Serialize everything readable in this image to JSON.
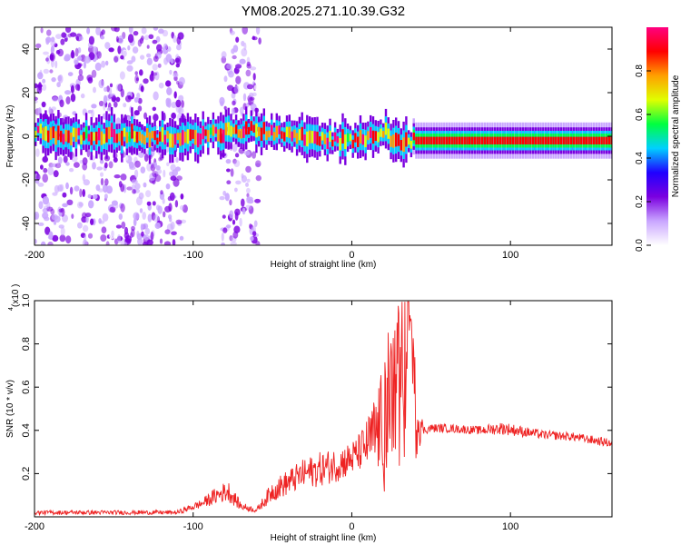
{
  "title": "YM08.2025.271.10.39.G32",
  "chart_data": [
    {
      "type": "heatmap",
      "name": "spectrogram",
      "xlabel": "Height of straight line (km)",
      "ylabel": "Frequency (Hz)",
      "xlim": [
        -200,
        164
      ],
      "ylim": [
        -50,
        50
      ],
      "xticks": [
        -200,
        -100,
        0,
        100
      ],
      "yticks": [
        -40,
        -20,
        0,
        20,
        40
      ],
      "noise_regions_km": [
        [
          -200,
          -105
        ],
        [
          -82,
          -58
        ]
      ],
      "signal_line": {
        "x": [
          -200,
          -175,
          -150,
          -130,
          -110,
          -95,
          -80,
          -65,
          -50,
          -40,
          -30,
          -20,
          -10,
          0,
          10,
          20,
          28,
          35,
          50,
          80,
          120,
          164
        ],
        "y": [
          2,
          0,
          1,
          0,
          -1,
          0,
          2,
          3,
          2,
          1,
          0,
          -1,
          -2,
          -2,
          0,
          2,
          -3,
          -2,
          -2,
          -2,
          -2,
          -2
        ]
      },
      "colorbar": {
        "label": "Normalized spectral amplitude",
        "range": [
          0,
          1
        ],
        "ticks": [
          "0.0",
          "0.2",
          "0.4",
          "0.6",
          "0.8"
        ],
        "colors": [
          "#ffffff",
          "#c9a6ff",
          "#7b00e0",
          "#2000ff",
          "#00d0ff",
          "#00ff40",
          "#e0ff00",
          "#ffa000",
          "#ff0000",
          "#ff0080"
        ]
      }
    },
    {
      "type": "line",
      "name": "snr",
      "xlabel": "Height of straight line (km)",
      "ylabel": "SNR (10 * v/v)",
      "scale_label": "(x10",
      "scale_exponent": "4",
      "xlim": [
        -200,
        164
      ],
      "ylim": [
        0,
        1.0
      ],
      "xticks": [
        -200,
        -100,
        0,
        100
      ],
      "yticks": [
        0.2,
        0.4,
        0.6,
        0.8,
        1.0
      ],
      "ytick_labels": [
        "0.2",
        "0.4",
        "0.6",
        "0.8",
        "1.0"
      ],
      "series": [
        {
          "name": "SNR",
          "color": "#ee2222",
          "x": [
            -200,
            -150,
            -110,
            -95,
            -85,
            -78,
            -70,
            -60,
            -50,
            -40,
            -30,
            -20,
            -10,
            0,
            5,
            10,
            15,
            20,
            25,
            30,
            35,
            37,
            40,
            45,
            50,
            60,
            80,
            95,
            120,
            140,
            164
          ],
          "y": [
            0.02,
            0.02,
            0.02,
            0.06,
            0.1,
            0.12,
            0.05,
            0.03,
            0.12,
            0.16,
            0.2,
            0.22,
            0.24,
            0.27,
            0.3,
            0.34,
            0.38,
            0.45,
            0.55,
            0.6,
            0.75,
            0.95,
            0.5,
            0.4,
            0.41,
            0.41,
            0.4,
            0.41,
            0.38,
            0.37,
            0.34
          ],
          "spread": [
            0.01,
            0.01,
            0.01,
            0.02,
            0.04,
            0.05,
            0.02,
            0.01,
            0.05,
            0.06,
            0.07,
            0.08,
            0.08,
            0.08,
            0.09,
            0.12,
            0.2,
            0.25,
            0.28,
            0.3,
            0.3,
            0.05,
            0.25,
            0.02,
            0.02,
            0.02,
            0.02,
            0.03,
            0.02,
            0.02,
            0.02
          ]
        }
      ]
    }
  ]
}
